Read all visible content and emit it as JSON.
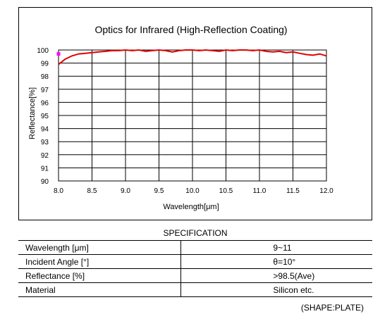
{
  "chart_data": {
    "type": "line",
    "title": "Optics for Infrared (High-Reflection Coating)",
    "xlabel": "Wavelength[μm]",
    "ylabel": "Reflectance[%]",
    "xlim": [
      8.0,
      12.0
    ],
    "ylim": [
      90,
      100
    ],
    "xticks": [
      "8.0",
      "8.5",
      "9.0",
      "9.5",
      "10.0",
      "10.5",
      "11.0",
      "11.5",
      "12.0"
    ],
    "yticks": [
      "90",
      "91",
      "92",
      "93",
      "94",
      "95",
      "96",
      "97",
      "98",
      "99",
      "100"
    ],
    "grid": true,
    "series": [
      {
        "color": "#e00000",
        "x": [
          8.0,
          8.05,
          8.1,
          8.2,
          8.3,
          8.4,
          8.5,
          8.6,
          8.7,
          8.8,
          8.9,
          9.0,
          9.1,
          9.2,
          9.3,
          9.4,
          9.5,
          9.6,
          9.7,
          9.8,
          9.9,
          10.0,
          10.1,
          10.2,
          10.3,
          10.4,
          10.5,
          10.6,
          10.7,
          10.8,
          10.9,
          11.0,
          11.1,
          11.2,
          11.3,
          11.4,
          11.5,
          11.6,
          11.7,
          11.8,
          11.9,
          12.0
        ],
        "y": [
          98.9,
          99.1,
          99.3,
          99.55,
          99.7,
          99.75,
          99.8,
          99.85,
          99.9,
          99.95,
          99.95,
          100.0,
          99.95,
          100.0,
          99.9,
          99.95,
          100.0,
          99.95,
          99.85,
          99.95,
          100.0,
          100.0,
          99.95,
          100.0,
          99.95,
          99.9,
          100.0,
          99.95,
          100.0,
          100.0,
          99.95,
          100.0,
          99.9,
          99.85,
          99.9,
          99.8,
          99.85,
          99.75,
          99.65,
          99.6,
          99.7,
          99.55
        ]
      },
      {
        "color": "#ff00ff",
        "x": [
          8.0
        ],
        "y": [
          99.7
        ]
      }
    ]
  },
  "spec": {
    "title": "SPECIFICATION",
    "rows": [
      {
        "param": "Wavelength [μm]",
        "value": "9~11"
      },
      {
        "param": "Incident Angle [°]",
        "value": "θ=10°"
      },
      {
        "param": "Reflectance [%]",
        "value": ">98.5(Ave)"
      },
      {
        "param": "Material",
        "value": "Silicon etc."
      }
    ],
    "note": "(SHAPE:PLATE)"
  }
}
